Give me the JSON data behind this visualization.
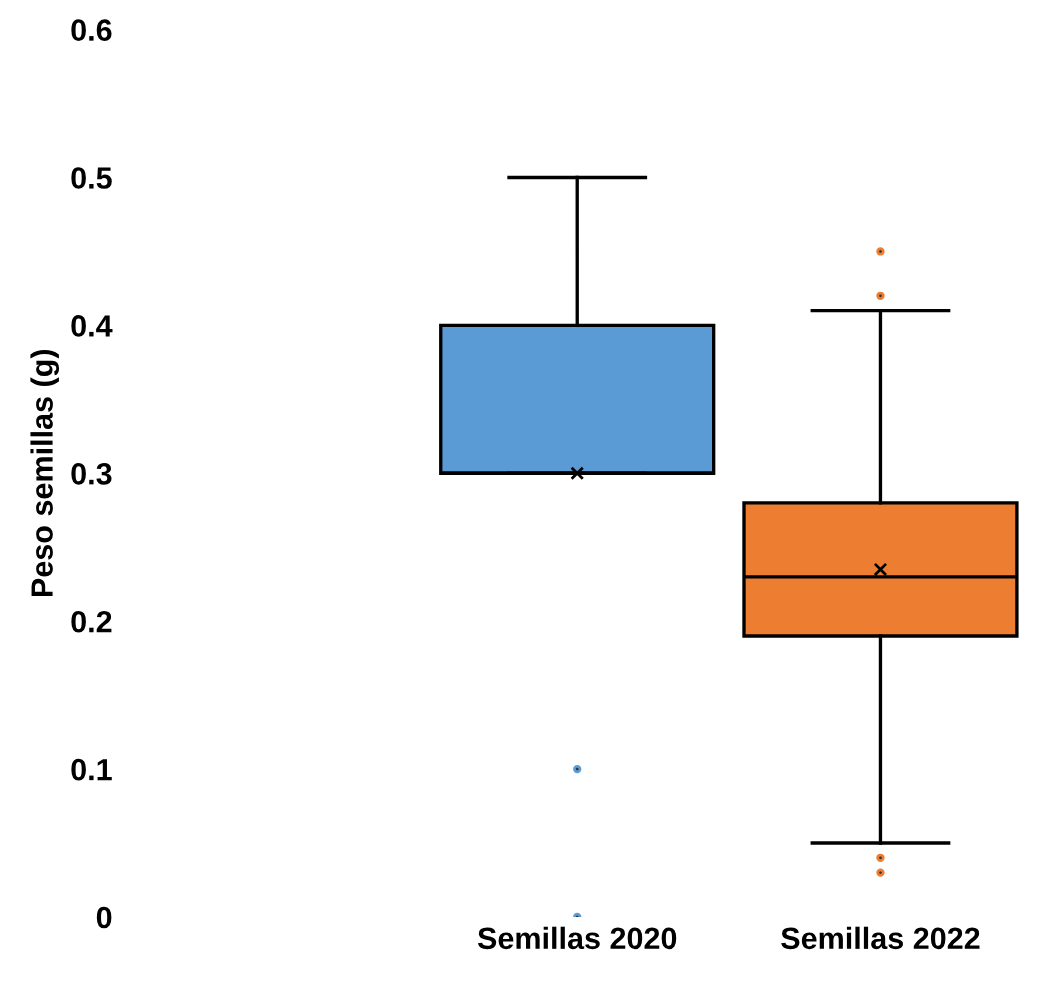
{
  "chart_data": {
    "type": "box",
    "ylabel": "Peso semillas (g)",
    "categories": [
      null,
      "Semillas 2020",
      "Semillas 2022"
    ],
    "boxes": [
      null,
      {
        "low": 0.3,
        "q1": 0.3,
        "median": 0.3,
        "q3": 0.4,
        "high": 0.5,
        "mean": 0.3,
        "outliers": [
          0.1,
          0.0
        ]
      },
      {
        "low": 0.05,
        "q1": 0.19,
        "median": 0.23,
        "q3": 0.28,
        "high": 0.41,
        "mean": 0.235,
        "outliers": [
          0.45,
          0.42,
          0.04,
          0.03
        ]
      }
    ],
    "colors": [
      null,
      "#5b9bd5",
      "#ed7d31"
    ],
    "ylim": [
      0,
      0.6
    ],
    "yticks": [
      0,
      0.1,
      0.2,
      0.3,
      0.4,
      0.5,
      0.6
    ],
    "grid": false
  }
}
